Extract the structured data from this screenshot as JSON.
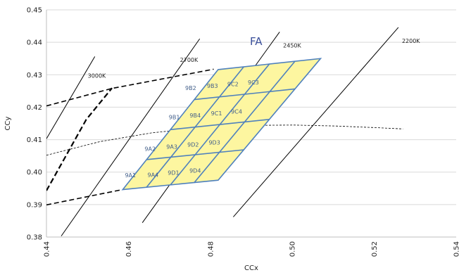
{
  "chart_data": {
    "type": "line",
    "xlabel": "CCx",
    "ylabel": "CCy",
    "xlim": [
      0.44,
      0.54
    ],
    "ylim": [
      0.38,
      0.45
    ],
    "x_ticks": [
      "0.44",
      "0.46",
      "0.48",
      "0.50",
      "0.52",
      "0.54"
    ],
    "y_ticks": [
      "0.38",
      "0.39",
      "0.40",
      "0.41",
      "0.42",
      "0.43",
      "0.44",
      "0.45"
    ],
    "grid": "horizontal",
    "region_title": "FA",
    "iso_cct_lines": [
      {
        "name": "3000K",
        "points": [
          [
            0.44,
            0.4103
          ],
          [
            0.4518,
            0.4356
          ]
        ]
      },
      {
        "name": "2700K",
        "points": [
          [
            0.4436,
            0.3803
          ],
          [
            0.4774,
            0.4411
          ]
        ]
      },
      {
        "name": "2450K",
        "points": [
          [
            0.4634,
            0.3844
          ],
          [
            0.4969,
            0.4432
          ]
        ]
      },
      {
        "name": "2200K",
        "points": [
          [
            0.4856,
            0.3862
          ],
          [
            0.5259,
            0.4446
          ]
        ]
      }
    ],
    "planckian_locus": [
      [
        0.44,
        0.4052
      ],
      [
        0.4531,
        0.4094
      ],
      [
        0.4657,
        0.4121
      ],
      [
        0.4778,
        0.4137
      ],
      [
        0.4893,
        0.4144
      ],
      [
        0.5003,
        0.4145
      ],
      [
        0.5107,
        0.4142
      ],
      [
        0.5205,
        0.4137
      ],
      [
        0.527,
        0.4133
      ]
    ],
    "boundary_dashed": [
      {
        "points": [
          [
            0.44,
            0.4204
          ],
          [
            0.456,
            0.4258
          ],
          [
            0.4808,
            0.4317
          ]
        ]
      },
      {
        "points": [
          [
            0.44,
            0.3899
          ],
          [
            0.4585,
            0.3946
          ]
        ]
      }
    ],
    "boundary_bold_dashed": [
      [
        0.44,
        0.3943
      ],
      [
        0.4497,
        0.4162
      ],
      [
        0.456,
        0.4259
      ]
    ],
    "region_corners": {
      "bottom_left": [
        0.4586,
        0.3946
      ],
      "bottom_right": [
        0.4819,
        0.3975
      ],
      "top_left": [
        0.4819,
        0.4316
      ],
      "top_right": [
        0.5069,
        0.435
      ]
    },
    "bins": [
      {
        "name": "9A1",
        "x": 0.4605,
        "y": 0.3984
      },
      {
        "name": "9A4",
        "x": 0.466,
        "y": 0.3985
      },
      {
        "name": "9D1",
        "x": 0.471,
        "y": 0.3992
      },
      {
        "name": "9D4",
        "x": 0.4763,
        "y": 0.3998
      },
      {
        "name": "9A2",
        "x": 0.4653,
        "y": 0.4065
      },
      {
        "name": "9A3",
        "x": 0.4706,
        "y": 0.4072
      },
      {
        "name": "9D2",
        "x": 0.4758,
        "y": 0.4079
      },
      {
        "name": "9D3",
        "x": 0.481,
        "y": 0.4085
      },
      {
        "name": "9B1",
        "x": 0.4712,
        "y": 0.4163
      },
      {
        "name": "9B4",
        "x": 0.4763,
        "y": 0.4168
      },
      {
        "name": "9C1",
        "x": 0.4815,
        "y": 0.4175
      },
      {
        "name": "9C4",
        "x": 0.4864,
        "y": 0.418
      },
      {
        "name": "9B2",
        "x": 0.4752,
        "y": 0.4253
      },
      {
        "name": "9B3",
        "x": 0.4805,
        "y": 0.4259
      },
      {
        "name": "9C2",
        "x": 0.4855,
        "y": 0.4265
      },
      {
        "name": "9C3",
        "x": 0.4905,
        "y": 0.427
      }
    ],
    "colors": {
      "region_fill": "#fdf6a0",
      "region_stroke": "#4f81bd",
      "line": "#000000",
      "grid": "#d9d9d9",
      "title": "#3a4f9a"
    }
  }
}
